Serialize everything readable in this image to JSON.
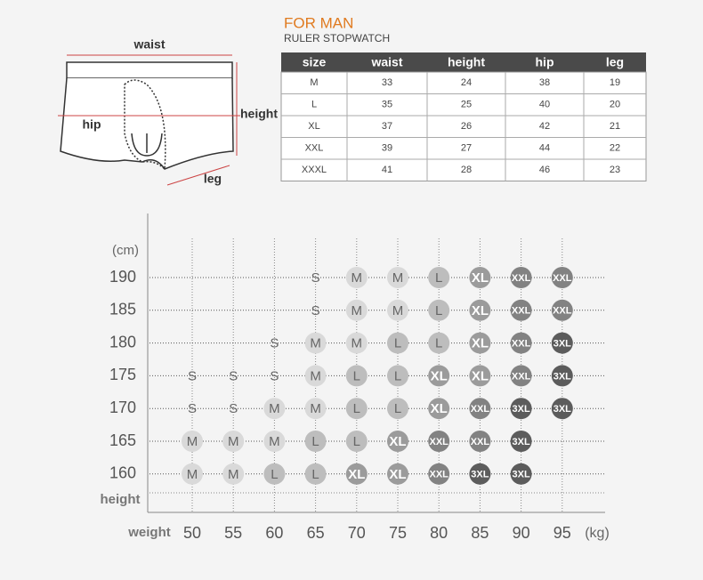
{
  "diagram": {
    "waist": "waist",
    "hip": "hip",
    "height": "height",
    "leg": "leg"
  },
  "header": {
    "title": "FOR MAN",
    "subtitle": "RULER STOPWATCH"
  },
  "table": {
    "columns": [
      "size",
      "waist",
      "height",
      "hip",
      "leg"
    ],
    "rows": [
      [
        "M",
        33,
        24,
        38,
        19
      ],
      [
        "L",
        35,
        25,
        40,
        20
      ],
      [
        "XL",
        37,
        26,
        42,
        21
      ],
      [
        "XXL",
        39,
        27,
        44,
        22
      ],
      [
        "XXXL",
        41,
        28,
        46,
        23
      ]
    ]
  },
  "grid": {
    "y_unit": "(cm)",
    "y_label": "height",
    "x_label": "weight",
    "x_unit": "(kg)",
    "heights": [
      190,
      185,
      180,
      175,
      170,
      165,
      160
    ],
    "weights": [
      50,
      55,
      60,
      65,
      70,
      75,
      80,
      85,
      90,
      95
    ],
    "cells": [
      [
        null,
        null,
        null,
        "S",
        "M",
        "M",
        "L",
        "XL",
        "XXL",
        "XXL"
      ],
      [
        null,
        null,
        null,
        "S",
        "M",
        "M",
        "L",
        "XL",
        "XXL",
        "XXL"
      ],
      [
        null,
        null,
        "S",
        "M",
        "M",
        "L",
        "L",
        "XL",
        "XXL",
        "3XL"
      ],
      [
        "S",
        "S",
        "S",
        "M",
        "L",
        "L",
        "XL",
        "XL",
        "XXL",
        "3XL"
      ],
      [
        "S",
        "S",
        "M",
        "M",
        "L",
        "L",
        "XL",
        "XXL",
        "3XL",
        "3XL"
      ],
      [
        "M",
        "M",
        "M",
        "L",
        "L",
        "XL",
        "XXL",
        "XXL",
        "3XL",
        null
      ],
      [
        "M",
        "M",
        "L",
        "L",
        "XL",
        "XL",
        "XXL",
        "3XL",
        "3XL",
        null
      ]
    ],
    "fills": {
      "S": "none",
      "M": "#d9d9d9",
      "L": "#bdbdbd",
      "XL": "#9b9b9b",
      "XXL": "#828282",
      "3XL": "#5c5c5c"
    }
  }
}
